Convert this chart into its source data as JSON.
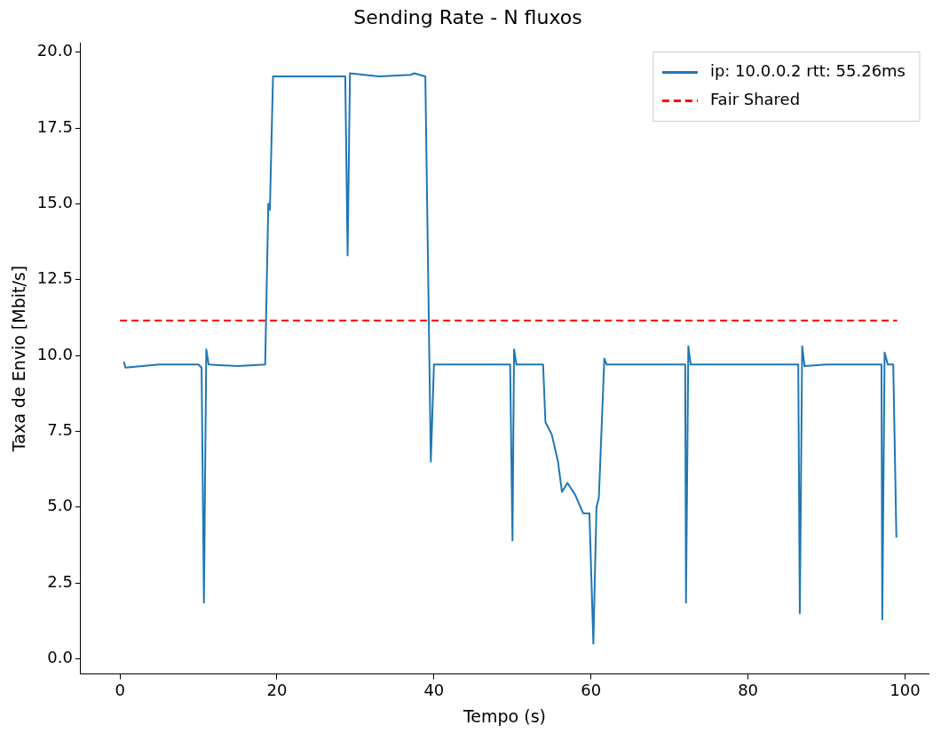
{
  "chart_data": {
    "type": "line",
    "title": "Sending Rate - N fluxos",
    "xlabel": "Tempo (s)",
    "ylabel": "Taxa de Envio [Mbit/s]",
    "xlim": [
      -5,
      103
    ],
    "xticks": [
      0,
      20,
      40,
      60,
      80,
      100
    ],
    "ylim": [
      -0.5,
      20.3
    ],
    "yticks": [
      {
        "value": 0,
        "label": "0.0"
      },
      {
        "value": 2.5,
        "label": "2.5"
      },
      {
        "value": 5,
        "label": "5.0"
      },
      {
        "value": 7.5,
        "label": "7.5"
      },
      {
        "value": 10,
        "label": "10.0"
      },
      {
        "value": 12.5,
        "label": "12.5"
      },
      {
        "value": 15,
        "label": "15.0"
      },
      {
        "value": 17.5,
        "label": "17.5"
      },
      {
        "value": 20,
        "label": "20.0"
      }
    ],
    "grid": false,
    "legend": "top right",
    "marker": "none",
    "series": [
      {
        "name": "ip: 10.0.0.2 rtt: 55.26ms",
        "color": "#1f77b4",
        "line_style": "solid",
        "x": [
          0.5,
          0.7,
          5,
          10,
          10.4,
          10.7,
          11,
          11.3,
          15,
          18.5,
          18.9,
          19.1,
          19.5,
          25,
          28.7,
          29,
          29.3,
          33,
          37,
          37.5,
          38.9,
          39.6,
          40,
          45,
          49.7,
          50,
          50.2,
          50.5,
          53.9,
          54.2,
          55,
          55.8,
          56.3,
          57,
          58,
          59,
          59.8,
          60.3,
          60.7,
          61,
          61.7,
          62,
          65,
          70,
          72,
          72.1,
          72.4,
          72.7,
          80,
          86.4,
          86.6,
          86.9,
          87.2,
          90,
          95,
          97,
          97.1,
          97.4,
          97.8,
          98.5,
          98.9
        ],
        "values": [
          9.8,
          9.6,
          9.7,
          9.7,
          9.6,
          1.85,
          10.2,
          9.7,
          9.65,
          9.7,
          15.0,
          14.8,
          19.2,
          19.2,
          19.2,
          13.3,
          19.3,
          19.2,
          19.25,
          19.3,
          19.2,
          6.5,
          9.7,
          9.7,
          9.7,
          3.9,
          10.2,
          9.7,
          9.7,
          7.8,
          7.4,
          6.5,
          5.5,
          5.8,
          5.4,
          4.8,
          4.8,
          0.5,
          5.0,
          5.3,
          9.9,
          9.7,
          9.7,
          9.7,
          9.7,
          1.85,
          10.3,
          9.7,
          9.7,
          9.7,
          1.5,
          10.3,
          9.65,
          9.7,
          9.7,
          9.7,
          1.3,
          10.1,
          9.7,
          9.7,
          4.0
        ]
      },
      {
        "name": "Fair Shared",
        "color": "#ff0000",
        "line_style": "dashed",
        "x": [
          0,
          99
        ],
        "values": [
          11.15,
          11.15
        ]
      }
    ]
  }
}
